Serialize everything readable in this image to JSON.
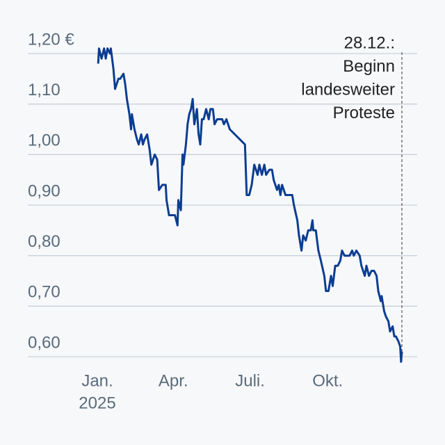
{
  "chart_data": {
    "type": "line",
    "series": [
      {
        "color": "#0b3d91",
        "x": [
          "2025-01-02",
          "2025-01-03",
          "2025-01-06",
          "2025-01-09",
          "2025-01-11",
          "2025-01-13",
          "2025-01-16",
          "2025-01-17",
          "2025-01-20",
          "2025-01-22",
          "2025-01-26",
          "2025-01-28",
          "2025-02-01",
          "2025-02-03",
          "2025-02-05",
          "2025-02-08",
          "2025-02-10",
          "2025-02-11",
          "2025-02-14",
          "2025-02-17",
          "2025-02-19",
          "2025-02-22",
          "2025-02-24",
          "2025-02-26",
          "2025-03-01",
          "2025-03-04",
          "2025-03-06",
          "2025-03-10",
          "2025-03-13",
          "2025-03-15",
          "2025-03-19",
          "2025-03-23",
          "2025-03-24",
          "2025-03-27",
          "2025-03-30",
          "2025-04-03",
          "2025-04-06",
          "2025-04-07",
          "2025-04-10",
          "2025-04-12",
          "2025-04-13",
          "2025-04-16",
          "2025-04-18",
          "2025-04-20",
          "2025-04-22",
          "2025-04-24",
          "2025-04-26",
          "2025-04-29",
          "2025-05-01",
          "2025-05-03",
          "2025-05-05",
          "2025-05-07",
          "2025-05-10",
          "2025-05-13",
          "2025-05-15",
          "2025-05-18",
          "2025-05-20",
          "2025-05-23",
          "2025-05-25",
          "2025-05-29",
          "2025-05-31",
          "2025-06-03",
          "2025-06-07",
          "2025-06-25",
          "2025-06-27",
          "2025-06-30",
          "2025-07-03",
          "2025-07-06",
          "2025-07-10",
          "2025-07-12",
          "2025-07-15",
          "2025-07-18",
          "2025-07-20",
          "2025-07-24",
          "2025-07-27",
          "2025-07-29",
          "2025-08-02",
          "2025-08-04",
          "2025-08-06",
          "2025-08-08",
          "2025-08-12",
          "2025-08-15",
          "2025-08-18",
          "2025-08-20",
          "2025-08-22",
          "2025-08-26",
          "2025-08-28",
          "2025-08-31",
          "2025-09-02",
          "2025-09-05",
          "2025-09-08",
          "2025-09-11",
          "2025-09-13",
          "2025-09-14",
          "2025-09-17",
          "2025-09-20",
          "2025-09-23",
          "2025-09-27",
          "2025-09-29",
          "2025-10-02",
          "2025-10-05",
          "2025-10-07",
          "2025-10-10",
          "2025-10-13",
          "2025-10-16",
          "2025-10-18",
          "2025-10-21",
          "2025-10-25",
          "2025-10-27",
          "2025-10-30",
          "2025-11-01",
          "2025-11-04",
          "2025-11-08",
          "2025-11-10",
          "2025-11-14",
          "2025-11-16",
          "2025-11-19",
          "2025-11-22",
          "2025-11-25",
          "2025-11-28",
          "2025-11-30",
          "2025-12-03",
          "2025-12-04",
          "2025-12-07",
          "2025-12-09",
          "2025-12-12",
          "2025-12-14",
          "2025-12-17",
          "2025-12-19",
          "2025-12-21",
          "2025-12-24",
          "2025-12-26",
          "2025-12-27",
          "2025-12-28"
        ],
        "values": [
          1.18,
          1.21,
          1.19,
          1.21,
          1.19,
          1.21,
          1.2,
          1.21,
          1.17,
          1.13,
          1.15,
          1.15,
          1.16,
          1.14,
          1.11,
          1.08,
          1.05,
          1.08,
          1.05,
          1.03,
          1.02,
          1.04,
          1.02,
          1.03,
          1.04,
          1.01,
          0.98,
          1.0,
          0.99,
          0.93,
          0.94,
          0.94,
          0.91,
          0.88,
          0.88,
          0.88,
          0.86,
          0.91,
          0.89,
          1.0,
          0.98,
          1.02,
          1.06,
          1.08,
          1.09,
          1.11,
          1.06,
          1.09,
          1.04,
          1.02,
          1.07,
          1.07,
          1.09,
          1.07,
          1.09,
          1.09,
          1.06,
          1.07,
          1.07,
          1.07,
          1.06,
          1.07,
          1.05,
          1.02,
          0.92,
          0.92,
          0.94,
          0.98,
          0.96,
          0.98,
          0.96,
          0.98,
          0.96,
          0.97,
          0.97,
          0.95,
          0.93,
          0.94,
          0.92,
          0.94,
          0.92,
          0.92,
          0.92,
          0.92,
          0.9,
          0.87,
          0.84,
          0.81,
          0.84,
          0.83,
          0.85,
          0.85,
          0.87,
          0.85,
          0.85,
          0.81,
          0.79,
          0.76,
          0.73,
          0.73,
          0.76,
          0.74,
          0.78,
          0.78,
          0.79,
          0.81,
          0.8,
          0.8,
          0.8,
          0.81,
          0.8,
          0.81,
          0.8,
          0.78,
          0.76,
          0.78,
          0.76,
          0.77,
          0.77,
          0.76,
          0.73,
          0.71,
          0.72,
          0.69,
          0.68,
          0.67,
          0.65,
          0.66,
          0.64,
          0.64,
          0.63,
          0.62,
          0.59,
          0.61
        ]
      }
    ],
    "xlim": [
      "2025-01-01",
      "2025-12-28"
    ],
    "xticks": [
      {
        "value": "2025-01-01",
        "label": "Jan."
      },
      {
        "value": "2025-04-01",
        "label": "Apr."
      },
      {
        "value": "2025-07-01",
        "label": "Juli."
      },
      {
        "value": "2025-10-01",
        "label": "Okt."
      }
    ],
    "year_label": "2025",
    "ylim": [
      0.6,
      1.2
    ],
    "yticks": [
      {
        "value": 0.6,
        "label": "0,60"
      },
      {
        "value": 0.7,
        "label": "0,70"
      },
      {
        "value": 0.8,
        "label": "0,80"
      },
      {
        "value": 0.9,
        "label": "0,90"
      },
      {
        "value": 1.0,
        "label": "1,00"
      },
      {
        "value": 1.1,
        "label": "1,10"
      },
      {
        "value": 1.2,
        "label": "1,20 €"
      }
    ],
    "grid": true,
    "annotation": {
      "x": "2025-12-28",
      "text": [
        "28.12.:",
        "Beginn",
        "landesweiter",
        "Proteste"
      ]
    }
  }
}
